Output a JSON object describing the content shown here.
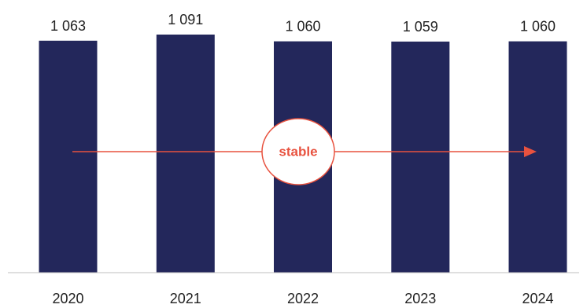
{
  "chart_data": {
    "type": "bar",
    "categories": [
      "2020",
      "2021",
      "2022",
      "2023",
      "2024"
    ],
    "values": [
      1063,
      1091,
      1060,
      1059,
      1060
    ],
    "value_labels": [
      "1 063",
      "1 091",
      "1 060",
      "1 059",
      "1 060"
    ],
    "title": "",
    "xlabel": "",
    "ylabel": "",
    "grid": false,
    "annotation": {
      "text": "stable"
    }
  },
  "colors": {
    "bar": "#23275b",
    "trend": "#e8523f",
    "axis": "#bfbfbf",
    "text": "#222222"
  }
}
